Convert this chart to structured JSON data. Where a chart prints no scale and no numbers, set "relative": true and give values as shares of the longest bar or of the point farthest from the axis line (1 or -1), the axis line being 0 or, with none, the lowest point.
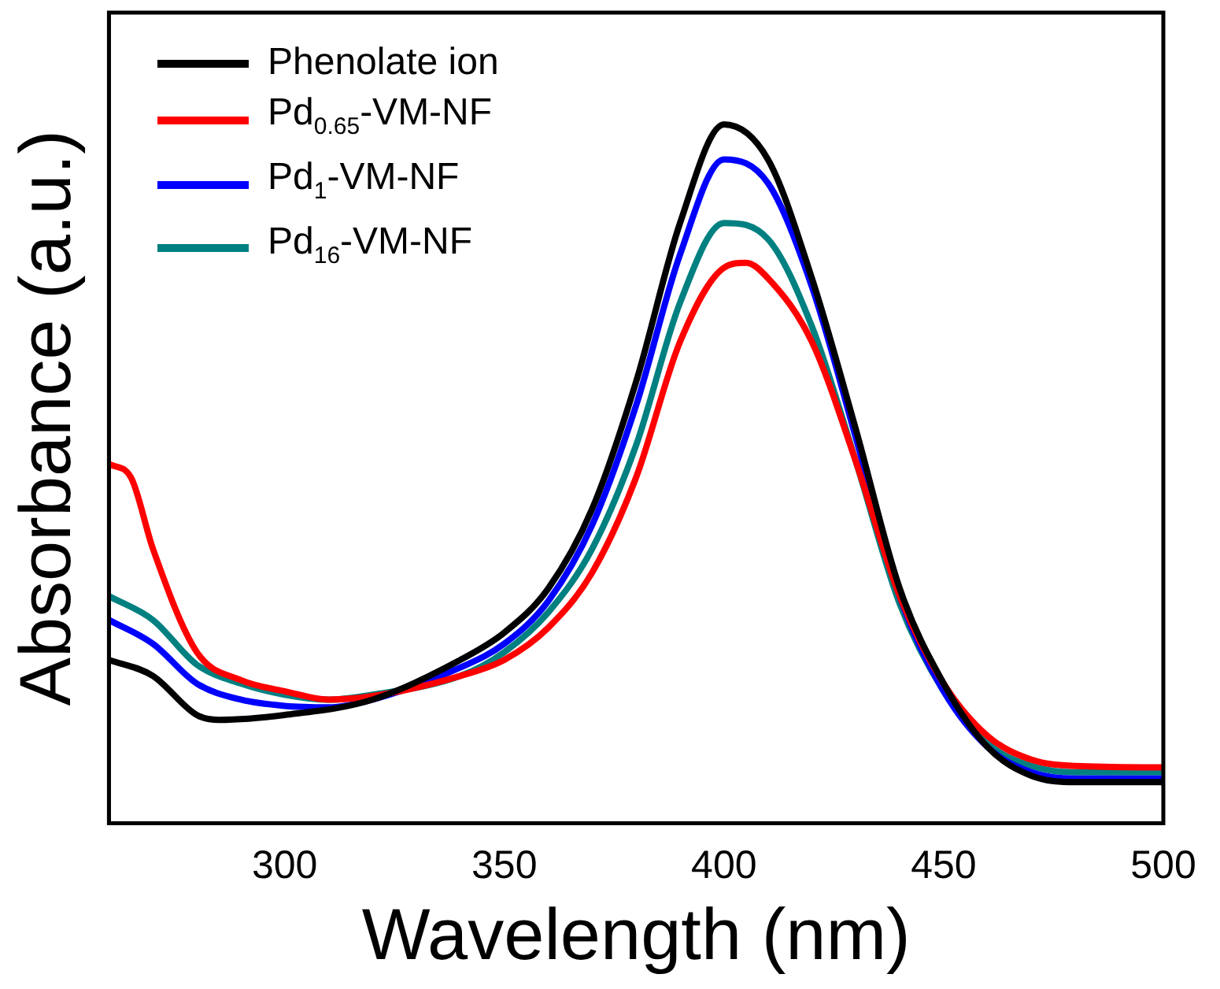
{
  "chart_data": {
    "type": "line",
    "xlabel": "Wavelength (nm)",
    "ylabel": "Absorbance (a.u.)",
    "relative": true,
    "xlim": [
      260,
      500
    ],
    "xticks": [
      300,
      350,
      400,
      450,
      500
    ],
    "grid": false,
    "legend": "top left",
    "marker": "none",
    "line_style": "solid",
    "series": [
      {
        "name": "Phenolate ion",
        "color": "#000000",
        "x": [
          260,
          270,
          280,
          285,
          300,
          320,
          340,
          350,
          360,
          370,
          380,
          390,
          400,
          410,
          420,
          430,
          440,
          450,
          460,
          470,
          480,
          500
        ],
        "values": [
          0.234,
          0.211,
          0.155,
          0.148,
          0.155,
          0.177,
          0.234,
          0.273,
          0.336,
          0.45,
          0.632,
          0.859,
          1,
          0.95,
          0.78,
          0.564,
          0.336,
          0.2,
          0.109,
          0.068,
          0.059,
          0.059
        ]
      },
      {
        "name": "Pd$_{0.65}$-VM-NF",
        "color": "#ff0000",
        "x": [
          260,
          265,
          270,
          280,
          290,
          300,
          310,
          320,
          340,
          350,
          360,
          370,
          380,
          390,
          400,
          405,
          410,
          420,
          430,
          440,
          450,
          460,
          470,
          480,
          500
        ],
        "values": [
          0.514,
          0.495,
          0.393,
          0.245,
          0.205,
          0.189,
          0.177,
          0.182,
          0.211,
          0.234,
          0.28,
          0.359,
          0.495,
          0.689,
          0.795,
          0.802,
          0.78,
          0.689,
          0.518,
          0.325,
          0.2,
          0.125,
          0.091,
          0.082,
          0.08
        ]
      },
      {
        "name": "Pd$_{1}$-VM-NF",
        "color": "#0000ff",
        "x": [
          260,
          270,
          280,
          290,
          300,
          310,
          320,
          340,
          350,
          360,
          370,
          380,
          390,
          400,
          410,
          420,
          430,
          440,
          450,
          460,
          470,
          480,
          500
        ],
        "values": [
          0.291,
          0.257,
          0.2,
          0.177,
          0.168,
          0.166,
          0.177,
          0.223,
          0.257,
          0.318,
          0.427,
          0.598,
          0.814,
          0.95,
          0.916,
          0.768,
          0.552,
          0.325,
          0.189,
          0.109,
          0.073,
          0.064,
          0.064
        ]
      },
      {
        "name": "Pd$_{16}$-VM-NF",
        "color": "#008080",
        "x": [
          260,
          270,
          280,
          290,
          300,
          310,
          320,
          340,
          350,
          360,
          370,
          380,
          390,
          400,
          410,
          420,
          430,
          440,
          450,
          460,
          470,
          480,
          500
        ],
        "values": [
          0.325,
          0.291,
          0.227,
          0.2,
          0.184,
          0.177,
          0.184,
          0.211,
          0.245,
          0.302,
          0.393,
          0.541,
          0.745,
          0.859,
          0.836,
          0.711,
          0.518,
          0.314,
          0.189,
          0.114,
          0.082,
          0.073,
          0.073
        ]
      }
    ]
  }
}
